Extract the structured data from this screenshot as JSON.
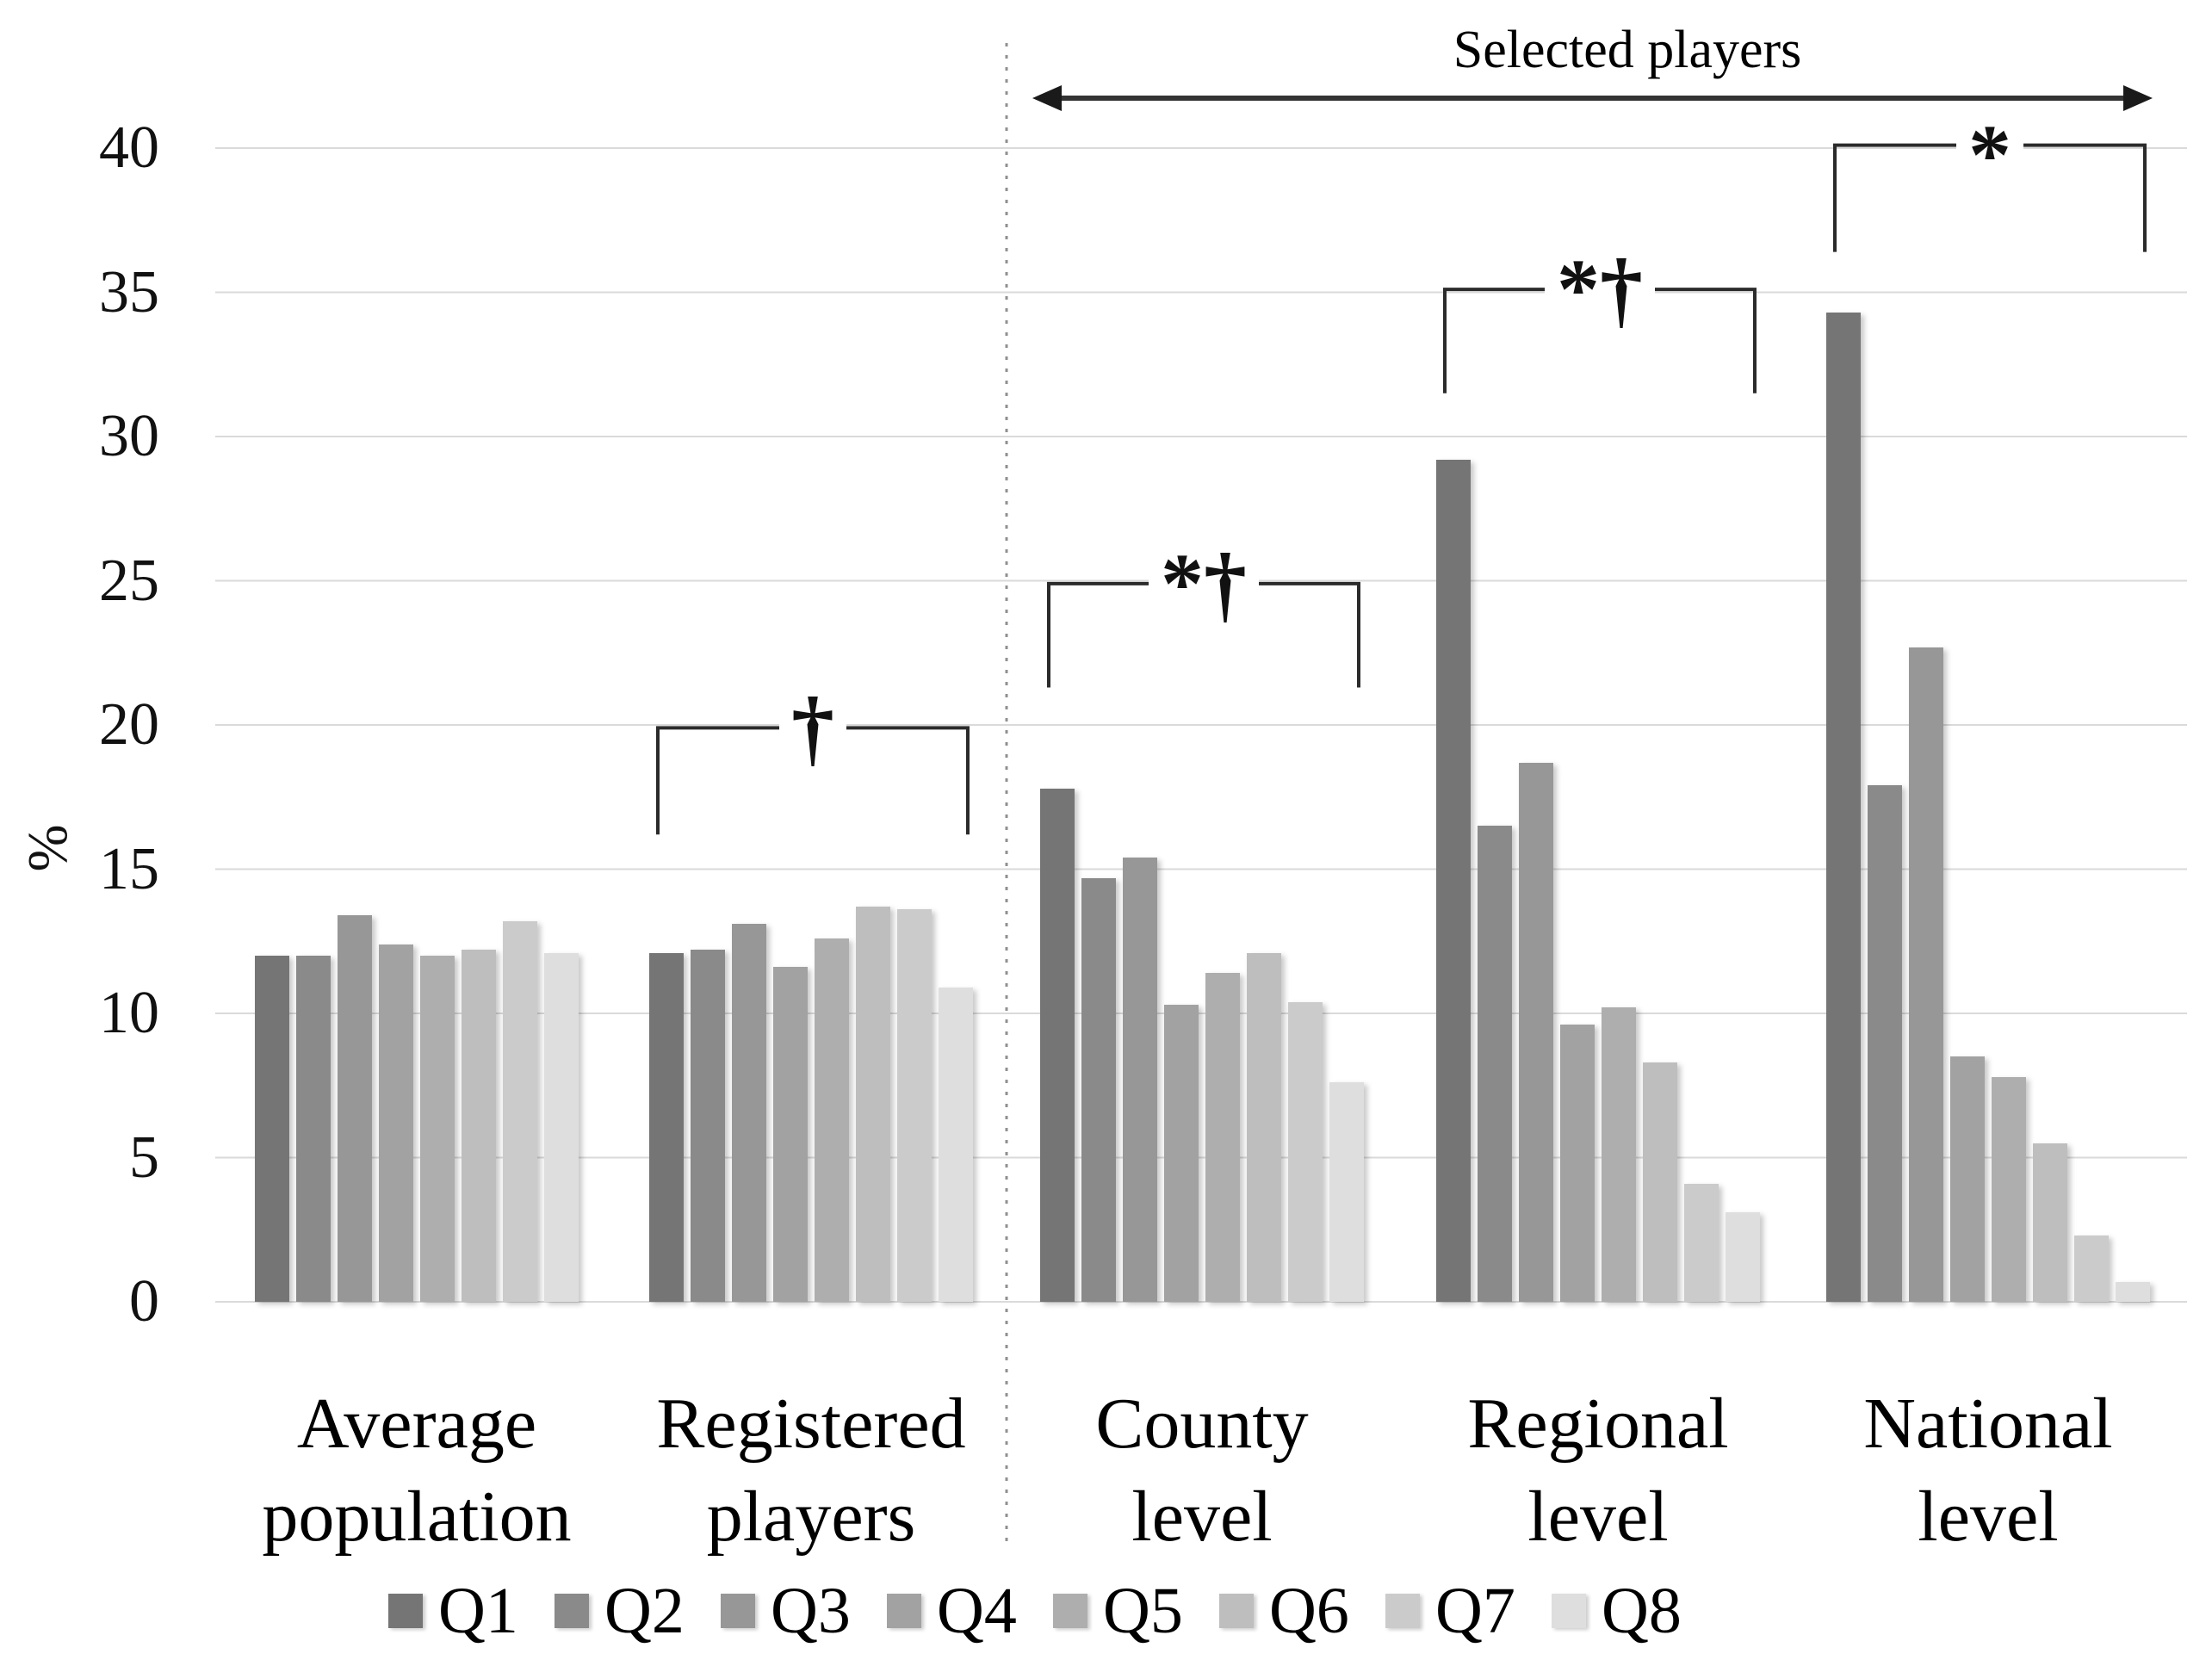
{
  "chart_data": {
    "type": "bar",
    "title": "",
    "xlabel": "",
    "ylabel": "%",
    "ylim": [
      0,
      40
    ],
    "yticks": [
      0,
      5,
      10,
      15,
      20,
      25,
      30,
      35,
      40
    ],
    "grid": true,
    "legend_position": "bottom",
    "categories": [
      "Average population",
      "Registered players",
      "County level",
      "Regional level",
      "National level"
    ],
    "categories_lines": [
      [
        "Average",
        "population"
      ],
      [
        "Registered",
        "players"
      ],
      [
        "County",
        "level"
      ],
      [
        "Regional",
        "level"
      ],
      [
        "National",
        "level"
      ]
    ],
    "series": [
      {
        "name": "Q1",
        "color": "#757575",
        "values": [
          12.0,
          12.1,
          17.8,
          29.2,
          34.3
        ]
      },
      {
        "name": "Q2",
        "color": "#8a8a8a",
        "values": [
          12.0,
          12.2,
          14.7,
          16.5,
          17.9
        ]
      },
      {
        "name": "Q3",
        "color": "#979797",
        "values": [
          13.4,
          13.1,
          15.4,
          18.7,
          22.7
        ]
      },
      {
        "name": "Q4",
        "color": "#a2a2a2",
        "values": [
          12.4,
          11.6,
          10.3,
          9.6,
          8.5
        ]
      },
      {
        "name": "Q5",
        "color": "#aeaeae",
        "values": [
          12.0,
          12.6,
          11.4,
          10.2,
          7.8
        ]
      },
      {
        "name": "Q6",
        "color": "#bebebe",
        "values": [
          12.2,
          13.7,
          12.1,
          8.3,
          5.5
        ]
      },
      {
        "name": "Q7",
        "color": "#cbcbcb",
        "values": [
          13.2,
          13.6,
          10.4,
          4.1,
          2.3
        ]
      },
      {
        "name": "Q8",
        "color": "#dedede",
        "values": [
          12.1,
          10.9,
          7.6,
          3.1,
          0.7
        ]
      }
    ]
  },
  "annotations": {
    "selected_players_label": "Selected players",
    "brackets": [
      {
        "symbols": "†",
        "category": "Registered players",
        "group_index": 1,
        "top_pct": 19.9,
        "bottom_pct": 16.2
      },
      {
        "symbols": "*†",
        "category": "County level",
        "group_index": 2,
        "top_pct": 24.9,
        "bottom_pct": 21.3
      },
      {
        "symbols": "*†",
        "category": "Regional level",
        "group_index": 3,
        "top_pct": 35.1,
        "bottom_pct": 31.5
      },
      {
        "symbols": "*",
        "category": "National level",
        "group_index": 4,
        "top_pct": 40.1,
        "bottom_pct": 36.4
      }
    ]
  }
}
